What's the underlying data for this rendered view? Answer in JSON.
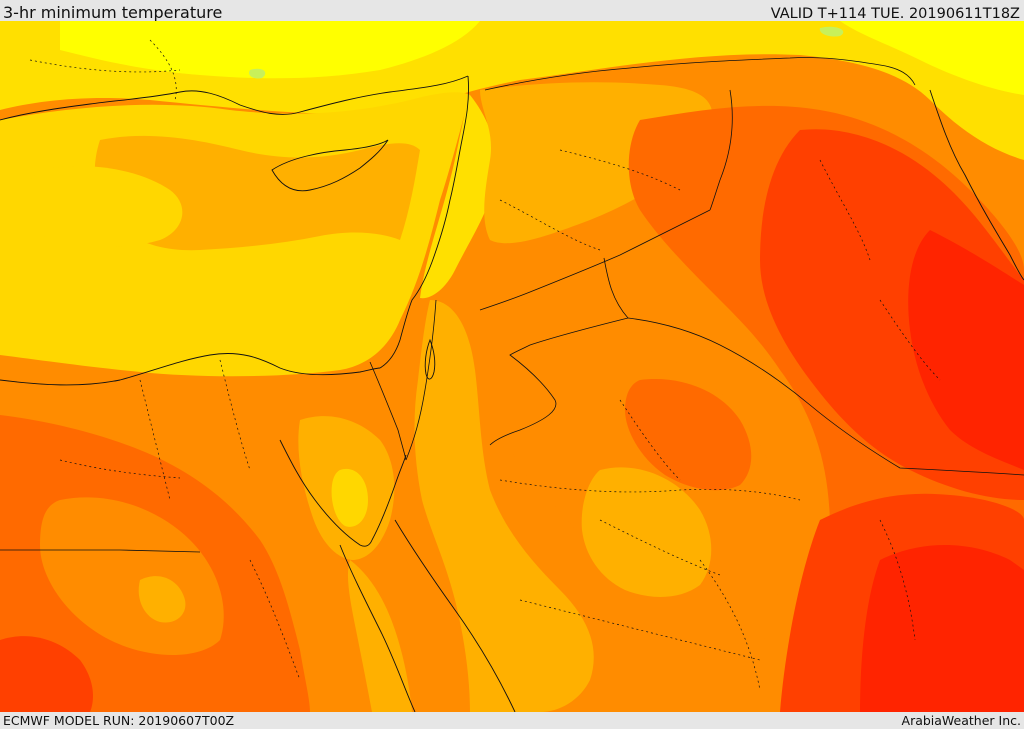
{
  "header": {
    "title": "3-hr minimum temperature",
    "valid": "VALID T+114 TUE. 20190611T18Z"
  },
  "footer": {
    "model_run": "ECMWF MODEL RUN: 20190607T00Z",
    "credit": "ArabiaWeather Inc."
  },
  "palette": {
    "lightest": "#ffff00",
    "light": "#ffe000",
    "mid_light": "#ffb000",
    "mid": "#ff8c00",
    "mid_dark": "#ff6a00",
    "dark": "#ff4000",
    "darkest": "#ff2400",
    "pale_green": "#c8f05a"
  }
}
